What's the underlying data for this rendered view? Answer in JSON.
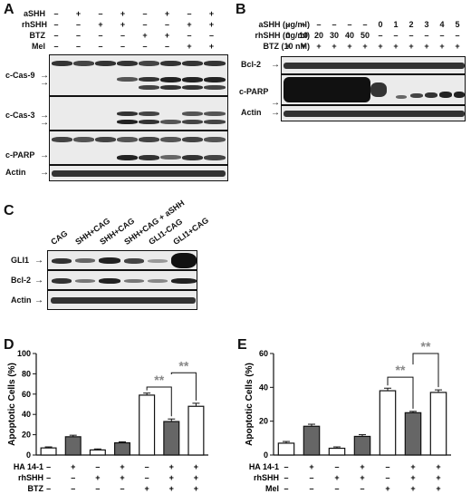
{
  "panels": {
    "A": {
      "label": "A",
      "treatments": [
        {
          "name": "aSHH",
          "signs": [
            "–",
            "+",
            "–",
            "+",
            "–",
            "+",
            "–",
            "+"
          ]
        },
        {
          "name": "rhSHH",
          "signs": [
            "–",
            "–",
            "+",
            "+",
            "–",
            "–",
            "+",
            "+"
          ]
        },
        {
          "name": "BTZ",
          "signs": [
            "–",
            "–",
            "–",
            "–",
            "+",
            "+",
            "–",
            "–"
          ]
        },
        {
          "name": "Mel",
          "signs": [
            "–",
            "–",
            "–",
            "–",
            "–",
            "–",
            "+",
            "+"
          ]
        }
      ],
      "rows": [
        "c-Cas-9",
        "c-Cas-3",
        "c-PARP",
        "Actin"
      ]
    },
    "B": {
      "label": "B",
      "treatments": [
        {
          "name": "aSHH (μg/ml)",
          "signs": [
            "–",
            "–",
            "–",
            "–",
            "–",
            "–",
            "0",
            "1",
            "2",
            "3",
            "4",
            "5"
          ]
        },
        {
          "name": "rhSHH (ng/ml)",
          "signs": [
            "0",
            "10",
            "20",
            "30",
            "40",
            "50",
            "–",
            "–",
            "–",
            "–",
            "–",
            "–"
          ]
        },
        {
          "name": "BTZ (10 nM)",
          "signs": [
            "+",
            "+",
            "+",
            "+",
            "+",
            "+",
            "+",
            "+",
            "+",
            "+",
            "+",
            "+"
          ]
        }
      ],
      "rows": [
        "Bcl-2",
        "c-PARP",
        "Actin"
      ]
    },
    "C": {
      "label": "C",
      "columns": [
        "CAG",
        "SHH+CAG",
        "SHH+CAG",
        "SHH+CAG + aSHH",
        "GLI1-CAG",
        "GLI1+CAG"
      ],
      "rows": [
        "GLI1",
        "Bcl-2",
        "Actin"
      ]
    },
    "D": {
      "label": "D",
      "treatments": [
        {
          "name": "HA 14-1",
          "signs": [
            "–",
            "+",
            "–",
            "+",
            "–",
            "+",
            "+"
          ]
        },
        {
          "name": "rhSHH",
          "signs": [
            "–",
            "–",
            "+",
            "+",
            "–",
            "+",
            "+"
          ]
        },
        {
          "name": "BTZ",
          "signs": [
            "–",
            "–",
            "–",
            "–",
            "+",
            "+",
            "+"
          ]
        }
      ],
      "sig": [
        "**",
        "**"
      ]
    },
    "E": {
      "label": "E",
      "treatments": [
        {
          "name": "HA 14-1",
          "signs": [
            "–",
            "+",
            "–",
            "+",
            "–",
            "+",
            "+"
          ]
        },
        {
          "name": "rhSHH",
          "signs": [
            "–",
            "–",
            "+",
            "+",
            "–",
            "+",
            "+"
          ]
        },
        {
          "name": "Mel",
          "signs": [
            "–",
            "–",
            "–",
            "–",
            "+",
            "+",
            "+"
          ]
        }
      ],
      "sig": [
        "**",
        "**"
      ]
    }
  },
  "colors": {
    "open": "#ffffff",
    "filled": "#666666",
    "sig": "#888888",
    "blot_bg": "#ebebeb"
  },
  "chart_data": [
    {
      "type": "bar",
      "panel": "D",
      "ylabel": "Apoptotic Cells (%)",
      "ylim": [
        0,
        100
      ],
      "yticks": [
        "0",
        "20",
        "40",
        "60",
        "80",
        "100"
      ],
      "values": [
        7,
        18,
        5,
        12,
        59,
        33,
        48
      ],
      "errors": [
        1,
        1.5,
        1,
        1,
        2,
        2.5,
        3
      ],
      "fills": [
        "open",
        "filled",
        "open",
        "filled",
        "open",
        "filled",
        "open"
      ]
    },
    {
      "type": "bar",
      "panel": "E",
      "ylabel": "Apoptotic Cells (%)",
      "ylim": [
        0,
        60
      ],
      "yticks": [
        "0",
        "20",
        "40",
        "60"
      ],
      "values": [
        7,
        17,
        4,
        11,
        38,
        25,
        37
      ],
      "errors": [
        1,
        1.2,
        0.8,
        1,
        1.5,
        0.8,
        1.5
      ],
      "fills": [
        "open",
        "filled",
        "open",
        "filled",
        "open",
        "filled",
        "open"
      ]
    }
  ]
}
